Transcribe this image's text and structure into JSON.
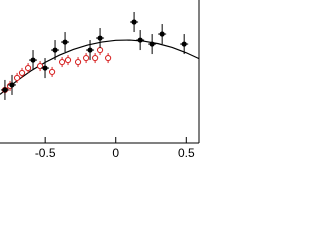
{
  "chart_data": {
    "type": "scatter",
    "xlim": [
      -0.82,
      0.59
    ],
    "ylim": [
      0,
      1
    ],
    "xticks": [
      -0.5,
      0,
      0.5
    ],
    "series": [
      {
        "type": "line",
        "color": "#000000",
        "x": [
          -0.82,
          -0.7,
          -0.6,
          -0.5,
          -0.4,
          -0.3,
          -0.2,
          -0.1,
          0,
          0.1,
          0.2,
          0.3,
          0.4,
          0.5,
          0.59
        ],
        "values": [
          0.34,
          0.435,
          0.505,
          0.564,
          0.614,
          0.654,
          0.685,
          0.706,
          0.718,
          0.72,
          0.712,
          0.695,
          0.668,
          0.631,
          0.59
        ]
      },
      {
        "type": "scatter",
        "marker": "open",
        "color": "#d62020",
        "x": [
          -0.785,
          -0.749,
          -0.699,
          -0.664,
          -0.621,
          -0.536,
          -0.451,
          -0.38,
          -0.338,
          -0.267,
          -0.21,
          -0.146,
          -0.111,
          -0.054
        ],
        "values": [
          0.371,
          0.399,
          0.455,
          0.49,
          0.524,
          0.538,
          0.497,
          0.566,
          0.58,
          0.566,
          0.594,
          0.594,
          0.65,
          0.594
        ],
        "errors": [
          0.035,
          0.035,
          0.035,
          0.035,
          0.035,
          0.035,
          0.035,
          0.035,
          0.035,
          0.035,
          0.035,
          0.035,
          0.035,
          0.035
        ]
      },
      {
        "type": "scatter",
        "marker": "filled",
        "color": "#000000",
        "x": [
          -0.785,
          -0.735,
          -0.586,
          -0.501,
          -0.43,
          -0.359,
          -0.182,
          -0.111,
          0.13,
          0.173,
          0.258,
          0.329,
          0.485
        ],
        "values": [
          0.371,
          0.406,
          0.58,
          0.524,
          0.65,
          0.706,
          0.65,
          0.734,
          0.846,
          0.72,
          0.692,
          0.762,
          0.692
        ],
        "errors": [
          0.07,
          0.07,
          0.07,
          0.07,
          0.07,
          0.07,
          0.07,
          0.07,
          0.07,
          0.07,
          0.07,
          0.07,
          0.07
        ]
      }
    ]
  }
}
